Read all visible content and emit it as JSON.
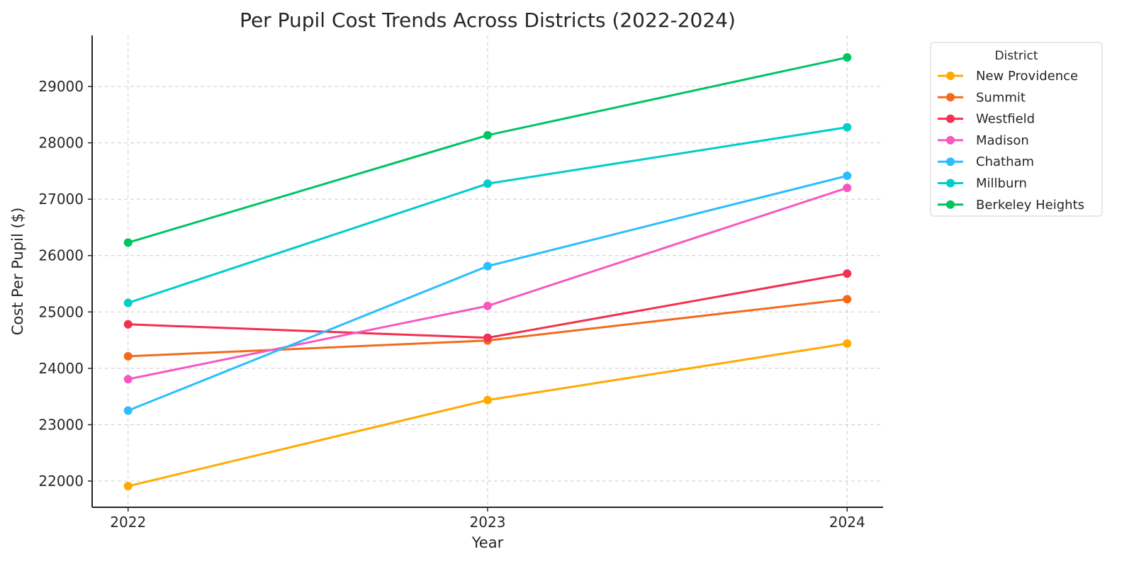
{
  "chart_data": {
    "type": "line",
    "title": "Per Pupil Cost Trends Across Districts (2022-2024)",
    "xlabel": "Year",
    "ylabel": "Cost Per Pupil ($)",
    "x": [
      2022,
      2023,
      2024
    ],
    "x_tick_labels": [
      "2022",
      "2023",
      "2024"
    ],
    "y_ticks": [
      22000,
      23000,
      24000,
      25000,
      26000,
      27000,
      28000,
      29000
    ],
    "y_tick_labels": [
      "22000",
      "23000",
      "24000",
      "25000",
      "26000",
      "27000",
      "28000",
      "29000"
    ],
    "xlim": [
      2021.9,
      2024.1
    ],
    "ylim": [
      21535,
      29905
    ],
    "grid": true,
    "legend": {
      "title": "District",
      "placement": "outside-top-right"
    },
    "series": [
      {
        "name": "New Providence",
        "color": "#FFAA00",
        "values": [
          21910,
          23436,
          24440
        ]
      },
      {
        "name": "Summit",
        "color": "#F26B1D",
        "values": [
          24214,
          24493,
          25226
        ]
      },
      {
        "name": "Westfield",
        "color": "#F2304F",
        "values": [
          24780,
          24542,
          25680
        ]
      },
      {
        "name": "Madison",
        "color": "#F857C1",
        "values": [
          23807,
          25107,
          27200
        ]
      },
      {
        "name": "Chatham",
        "color": "#2BBDFD",
        "values": [
          23250,
          25812,
          27415
        ]
      },
      {
        "name": "Millburn",
        "color": "#00CEC9",
        "values": [
          25160,
          27275,
          28276
        ]
      },
      {
        "name": "Berkeley Heights",
        "color": "#00C462",
        "values": [
          26230,
          28135,
          29515
        ]
      }
    ]
  }
}
